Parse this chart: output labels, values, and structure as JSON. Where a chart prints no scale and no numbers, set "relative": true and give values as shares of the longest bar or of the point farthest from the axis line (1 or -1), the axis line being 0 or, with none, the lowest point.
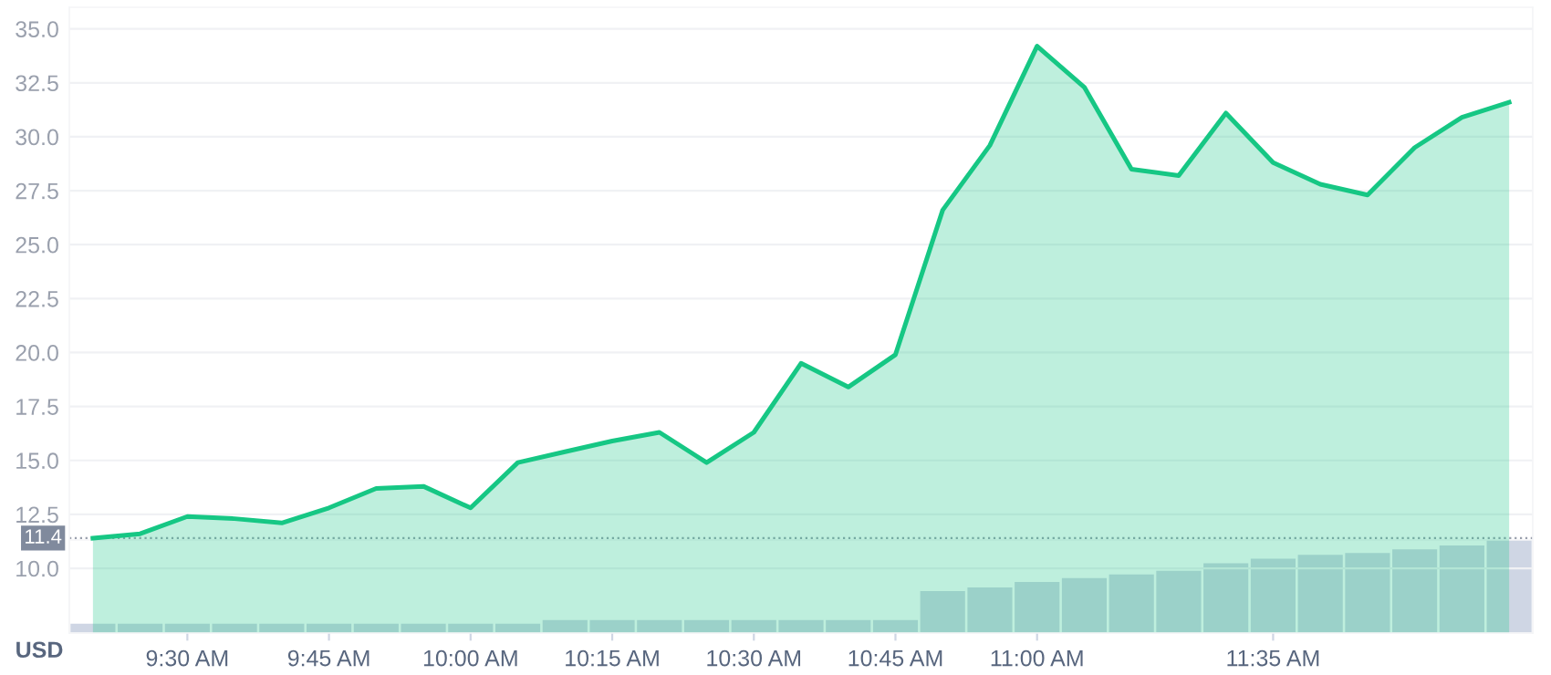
{
  "chart_data": [
    {
      "type": "area",
      "categories": [
        null,
        null,
        "9:30 AM",
        null,
        null,
        "9:45 AM",
        null,
        null,
        "10:00 AM",
        null,
        null,
        "10:15 AM",
        null,
        null,
        "10:30 AM",
        null,
        null,
        "10:45 AM",
        null,
        null,
        "11:00 AM",
        null,
        null,
        null,
        null,
        "11:35 AM",
        null,
        null,
        null,
        null,
        null
      ],
      "series": [
        {
          "color": "#16c784",
          "values": [
            11.4,
            11.6,
            12.4,
            12.3,
            12.1,
            12.8,
            13.7,
            13.8,
            12.8,
            14.9,
            15.4,
            15.9,
            16.3,
            14.9,
            16.3,
            19.5,
            18.4,
            19.9,
            26.6,
            29.6,
            34.2,
            32.3,
            28.5,
            28.2,
            31.1,
            28.8,
            27.8,
            27.3,
            29.5,
            30.9,
            31.6
          ]
        }
      ],
      "ylim": [
        7,
        36
      ],
      "yticks": [
        {
          "value": 10,
          "label": "10.0"
        },
        12.5,
        {
          "value": 15,
          "label": "15.0"
        },
        17.5,
        {
          "value": 20,
          "label": "20.0"
        },
        22.5,
        {
          "value": 25,
          "label": "25.0"
        },
        27.5,
        {
          "value": 30,
          "label": "30.0"
        },
        32.5,
        {
          "value": 35,
          "label": "35.0"
        }
      ],
      "ref_lines": [
        {
          "axis": "y",
          "value": 11.4,
          "label": "11.4",
          "color": "#9aa0ad",
          "line_style": "dotted"
        }
      ],
      "grid": "y",
      "line_style": "solid"
    },
    {
      "type": "bar",
      "relative": true,
      "ylabel": "USD",
      "categories": [
        null,
        null,
        null,
        null,
        null,
        null,
        null,
        null,
        null,
        null,
        null,
        null,
        null,
        null,
        null,
        null,
        null,
        null,
        null,
        null,
        null,
        null,
        null,
        null,
        null,
        null,
        null,
        null,
        null,
        null,
        null
      ],
      "series": [
        {
          "color": "#cfd6e4",
          "values": [
            0.1,
            0.1,
            0.1,
            0.1,
            0.1,
            0.1,
            0.1,
            0.1,
            0.1,
            0.1,
            0.14,
            0.14,
            0.14,
            0.14,
            0.14,
            0.14,
            0.14,
            0.14,
            0.45,
            0.49,
            0.55,
            0.59,
            0.63,
            0.67,
            0.75,
            0.8,
            0.84,
            0.86,
            0.9,
            0.94,
            1.0
          ]
        }
      ]
    }
  ]
}
